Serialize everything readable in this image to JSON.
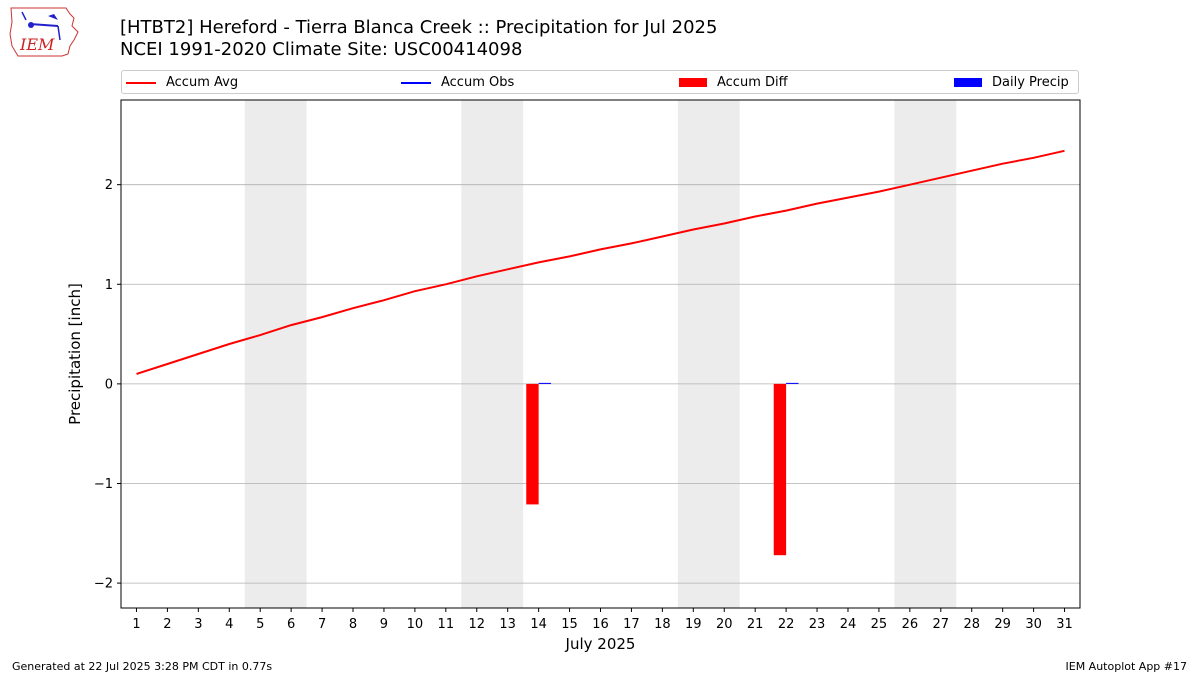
{
  "header": {
    "title_line1": "[HTBT2] Hereford - Tierra Blanca Creek :: Precipitation for Jul 2025",
    "title_line2": "NCEI 1991-2020 Climate Site: USC00414098",
    "logo_text": "IEM"
  },
  "legend": {
    "accum_avg": "Accum Avg",
    "accum_obs": "Accum Obs",
    "accum_diff": "Accum Diff",
    "daily_precip": "Daily Precip"
  },
  "footer": {
    "generated": "Generated at 22 Jul 2025 3:28 PM CDT in 0.77s",
    "app": "IEM Autoplot App #17"
  },
  "colors": {
    "accum_avg": "#ff0000",
    "accum_obs": "#0000ff",
    "accum_diff": "#ff0000",
    "daily_precip": "#0000ff",
    "weekend_shading": "#ececec",
    "grid": "#b0b0b0"
  },
  "chart_data": {
    "type": "line",
    "title": "[HTBT2] Hereford - Tierra Blanca Creek :: Precipitation for Jul 2025",
    "xlabel": "July 2025",
    "ylabel": "Precipitation [inch]",
    "xlim": [
      0.5,
      31.5
    ],
    "ylim": [
      -2.25,
      2.85
    ],
    "y_ticks": [
      -2,
      -1,
      0,
      1,
      2
    ],
    "y_tick_labels": [
      "−2",
      "−1",
      "0",
      "1",
      "2"
    ],
    "x_ticks": [
      1,
      2,
      3,
      4,
      5,
      6,
      7,
      8,
      9,
      10,
      11,
      12,
      13,
      14,
      15,
      16,
      17,
      18,
      19,
      20,
      21,
      22,
      23,
      24,
      25,
      26,
      27,
      28,
      29,
      30,
      31
    ],
    "grid": "horizontal",
    "legend_position": "top",
    "shaded_weekends": [
      [
        5,
        6
      ],
      [
        12,
        13
      ],
      [
        19,
        20
      ],
      [
        26,
        27
      ]
    ],
    "series": [
      {
        "name": "Accum Avg",
        "kind": "line",
        "x": [
          1,
          2,
          3,
          4,
          5,
          6,
          7,
          8,
          9,
          10,
          11,
          12,
          13,
          14,
          15,
          16,
          17,
          18,
          19,
          20,
          21,
          22,
          23,
          24,
          25,
          26,
          27,
          28,
          29,
          30,
          31
        ],
        "values": [
          0.1,
          0.2,
          0.3,
          0.4,
          0.49,
          0.59,
          0.67,
          0.76,
          0.84,
          0.93,
          1.0,
          1.08,
          1.15,
          1.22,
          1.28,
          1.35,
          1.41,
          1.48,
          1.55,
          1.61,
          1.68,
          1.74,
          1.81,
          1.87,
          1.93,
          2.0,
          2.07,
          2.14,
          2.21,
          2.27,
          2.34
        ]
      },
      {
        "name": "Accum Obs",
        "kind": "line",
        "x": [],
        "values": []
      },
      {
        "name": "Accum Diff",
        "kind": "bar",
        "x": [
          14,
          22
        ],
        "values": [
          -1.21,
          -1.72
        ]
      },
      {
        "name": "Daily Precip",
        "kind": "bar",
        "x": [
          14,
          22
        ],
        "values": [
          0.01,
          0.01
        ]
      }
    ]
  }
}
